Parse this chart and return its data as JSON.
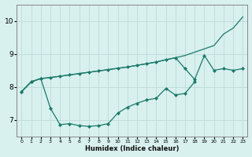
{
  "xlabel": "Humidex (Indice chaleur)",
  "x": [
    0,
    1,
    2,
    3,
    4,
    5,
    6,
    7,
    8,
    9,
    10,
    11,
    12,
    13,
    14,
    15,
    16,
    17,
    18,
    19,
    20,
    21,
    22,
    23
  ],
  "line1": [
    7.85,
    8.15,
    8.25,
    8.28,
    8.32,
    8.36,
    8.4,
    8.44,
    8.48,
    8.52,
    8.56,
    8.6,
    8.65,
    8.7,
    8.75,
    8.82,
    8.88,
    8.95,
    9.05,
    9.15,
    9.25,
    9.6,
    9.78,
    10.12
  ],
  "line2_x": [
    0,
    1,
    2,
    3,
    4,
    5,
    6,
    7,
    8,
    9,
    10,
    11,
    12,
    13,
    14,
    15,
    16,
    17,
    18,
    19,
    20,
    21,
    22,
    23
  ],
  "line2": [
    7.85,
    8.15,
    8.25,
    8.28,
    8.32,
    8.36,
    8.4,
    8.44,
    8.48,
    8.52,
    8.56,
    8.6,
    8.65,
    8.7,
    8.75,
    8.82,
    8.88,
    8.55,
    8.22,
    8.95,
    8.5,
    8.55,
    8.5,
    8.55
  ],
  "line3_x": [
    0,
    1,
    2,
    3,
    4,
    5,
    6,
    7,
    8,
    9,
    10,
    11,
    12,
    13,
    14,
    15,
    16,
    17,
    18
  ],
  "line3": [
    7.85,
    8.15,
    8.25,
    7.35,
    6.85,
    6.88,
    6.82,
    6.8,
    6.82,
    6.88,
    7.2,
    7.38,
    7.5,
    7.6,
    7.65,
    7.95,
    7.75,
    7.8,
    8.15
  ],
  "line_color": "#1a7a6a",
  "marker": "D",
  "marker_size": 2.5,
  "bg_color": "#d8f0ee",
  "grid_color": "#c0dedd",
  "ylim": [
    6.5,
    10.5
  ],
  "xlim": [
    -0.5,
    23.5
  ],
  "yticks": [
    7,
    8,
    9,
    10
  ],
  "xticks": [
    0,
    1,
    2,
    3,
    4,
    5,
    6,
    7,
    8,
    9,
    10,
    11,
    12,
    13,
    14,
    15,
    16,
    17,
    18,
    19,
    20,
    21,
    22,
    23
  ]
}
